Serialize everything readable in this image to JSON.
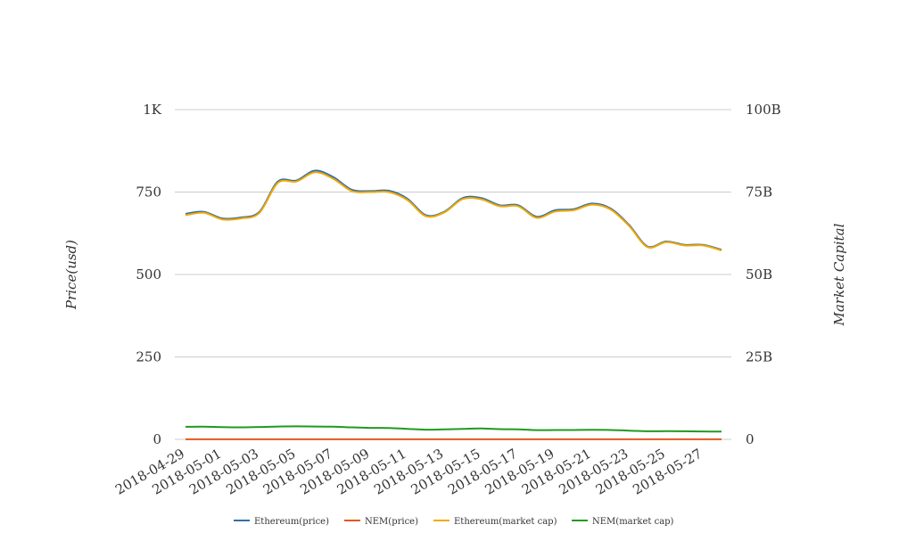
{
  "chart_data": {
    "type": "line",
    "x": [
      "2018-04-29",
      "2018-04-30",
      "2018-05-01",
      "2018-05-02",
      "2018-05-03",
      "2018-05-04",
      "2018-05-05",
      "2018-05-06",
      "2018-05-07",
      "2018-05-08",
      "2018-05-09",
      "2018-05-10",
      "2018-05-11",
      "2018-05-12",
      "2018-05-13",
      "2018-05-14",
      "2018-05-15",
      "2018-05-16",
      "2018-05-17",
      "2018-05-18",
      "2018-05-19",
      "2018-05-20",
      "2018-05-21",
      "2018-05-22",
      "2018-05-23",
      "2018-05-24",
      "2018-05-25",
      "2018-05-26",
      "2018-05-27",
      "2018-05-28"
    ],
    "x_tick_labels": [
      "2018-04-29",
      "2018-05-01",
      "2018-05-03",
      "2018-05-05",
      "2018-05-07",
      "2018-05-09",
      "2018-05-11",
      "2018-05-13",
      "2018-05-15",
      "2018-05-17",
      "2018-05-19",
      "2018-05-21",
      "2018-05-23",
      "2018-05-25",
      "2018-05-27"
    ],
    "ylabel_left": "Price(usd)",
    "ylabel_right": "Market Capital",
    "ylim_left": [
      0,
      1000
    ],
    "ylim_right": [
      0,
      100000000000
    ],
    "yticks_left": [
      "0",
      "250",
      "500",
      "750",
      "1K"
    ],
    "yticks_right": [
      "0",
      "25B",
      "50B",
      "75B",
      "100B"
    ],
    "grid": true,
    "legend_position": "bottom",
    "series": [
      {
        "name": "Ethereum(price)",
        "axis": "left",
        "color": "#2f6fad",
        "values": [
          684,
          690,
          670,
          673,
          690,
          782,
          785,
          815,
          795,
          757,
          753,
          754,
          730,
          680,
          690,
          732,
          732,
          710,
          710,
          675,
          695,
          698,
          715,
          700,
          650,
          585,
          600,
          590,
          590,
          575
        ]
      },
      {
        "name": "NEM(price)",
        "axis": "left",
        "color": "#e2581d",
        "values": [
          0.37,
          0.38,
          0.37,
          0.37,
          0.38,
          0.39,
          0.4,
          0.4,
          0.39,
          0.37,
          0.36,
          0.35,
          0.33,
          0.31,
          0.32,
          0.33,
          0.34,
          0.32,
          0.31,
          0.29,
          0.29,
          0.29,
          0.3,
          0.29,
          0.27,
          0.25,
          0.26,
          0.25,
          0.25,
          0.24
        ]
      },
      {
        "name": "Ethereum(market cap)",
        "axis": "right",
        "color": "#f2a900",
        "values": [
          68000000000,
          68700000000,
          66700000000,
          67000000000,
          68700000000,
          77800000000,
          78200000000,
          81000000000,
          79000000000,
          75300000000,
          75000000000,
          75000000000,
          72600000000,
          67700000000,
          68800000000,
          72900000000,
          72800000000,
          70700000000,
          70700000000,
          67200000000,
          69100000000,
          69500000000,
          71200000000,
          69700000000,
          64700000000,
          58300000000,
          59800000000,
          58800000000,
          58800000000,
          57300000000
        ]
      },
      {
        "name": "NEM(market cap)",
        "axis": "right",
        "color": "#1f9b1f",
        "values": [
          3800000000,
          3850000000,
          3700000000,
          3650000000,
          3750000000,
          3900000000,
          3950000000,
          3900000000,
          3850000000,
          3650000000,
          3500000000,
          3450000000,
          3200000000,
          2950000000,
          3050000000,
          3200000000,
          3300000000,
          3100000000,
          3050000000,
          2800000000,
          2850000000,
          2850000000,
          2900000000,
          2850000000,
          2650000000,
          2450000000,
          2500000000,
          2450000000,
          2400000000,
          2350000000
        ]
      }
    ]
  }
}
